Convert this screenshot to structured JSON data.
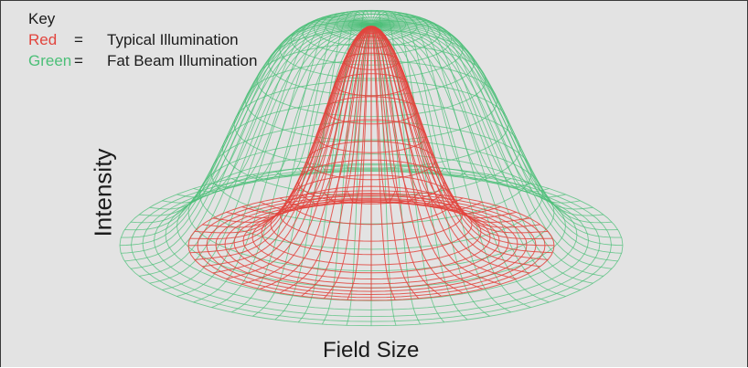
{
  "key": {
    "title": "Key",
    "items": [
      {
        "name": "Red",
        "equals": "=",
        "description": "Typical Illumination",
        "color": "#e2443d"
      },
      {
        "name": "Green",
        "equals": "=",
        "description": "Fat Beam Illumination",
        "color": "#4cbf78"
      }
    ]
  },
  "axes": {
    "y_label": "Intensity",
    "x_label": "Field Size"
  },
  "colors": {
    "background": "#e3e3e3",
    "border": "#3a3a3a",
    "text": "#1b1b1b"
  }
}
